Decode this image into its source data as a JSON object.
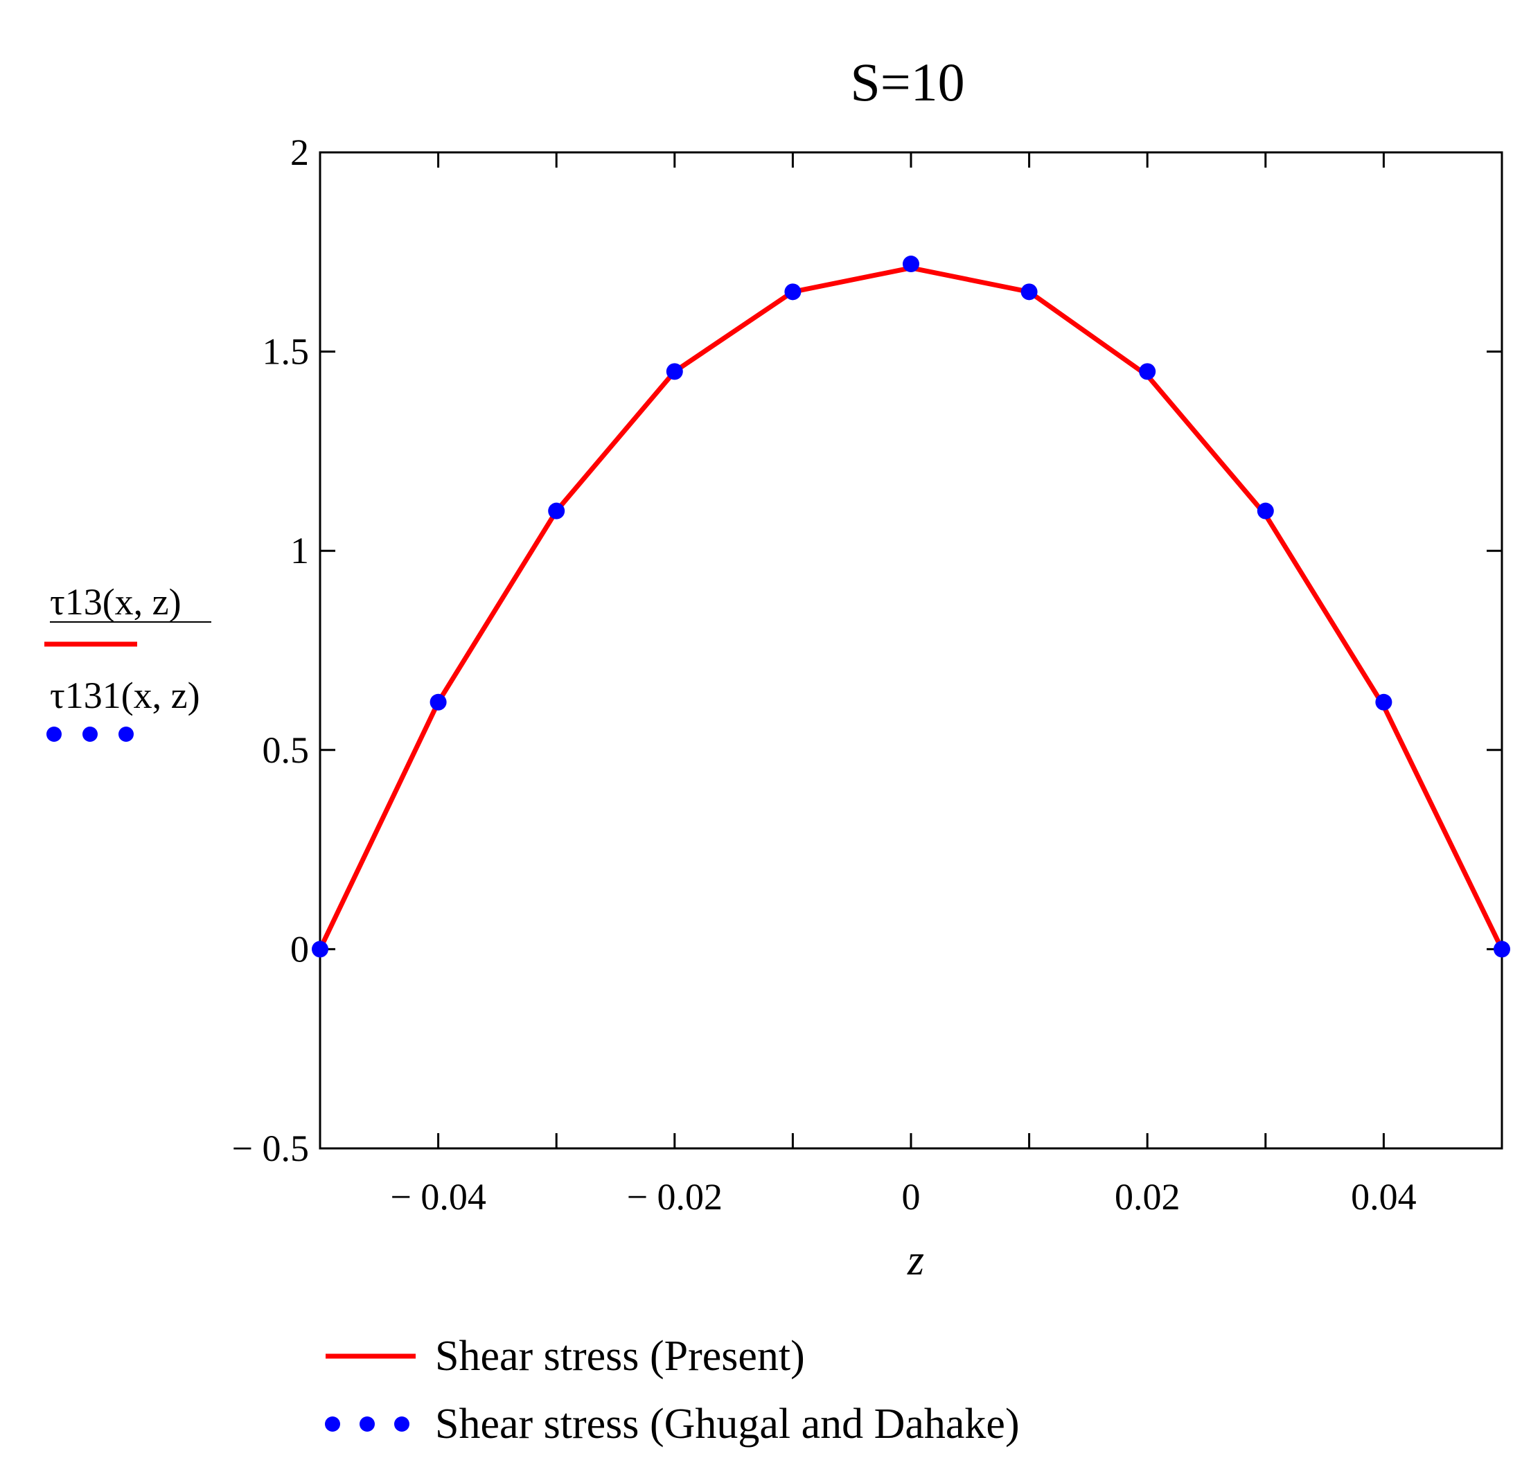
{
  "chart_data": {
    "type": "line",
    "title": "S=10",
    "xlabel": "z",
    "ylabel_series_labels": [
      "τ13(x, z)",
      "τ131(x, z)"
    ],
    "xlim": [
      -0.05,
      0.05
    ],
    "ylim": [
      -0.5,
      2
    ],
    "x_ticks": [
      -0.05,
      -0.04,
      -0.03,
      -0.02,
      -0.01,
      0,
      0.01,
      0.02,
      0.03,
      0.04,
      0.05
    ],
    "x_tick_labels": [
      {
        "value": -0.04,
        "label": "− 0.04"
      },
      {
        "value": -0.02,
        "label": "− 0.02"
      },
      {
        "value": 0,
        "label": "0"
      },
      {
        "value": 0.02,
        "label": "0.02"
      },
      {
        "value": 0.04,
        "label": "0.04"
      }
    ],
    "y_ticks": [
      {
        "value": -0.5,
        "label": "− 0.5"
      },
      {
        "value": 0,
        "label": "0"
      },
      {
        "value": 0.5,
        "label": "0.5"
      },
      {
        "value": 1,
        "label": "1"
      },
      {
        "value": 1.5,
        "label": "1.5"
      },
      {
        "value": 2,
        "label": "2"
      }
    ],
    "grid": false,
    "legend_placement": "bottom",
    "series": [
      {
        "name": "Shear stress (Present)",
        "style": "line",
        "color": "#ff0000",
        "x": [
          -0.05,
          -0.04,
          -0.03,
          -0.02,
          -0.01,
          0,
          0.01,
          0.02,
          0.03,
          0.04,
          0.05
        ],
        "y": [
          0,
          0.62,
          1.1,
          1.45,
          1.65,
          1.71,
          1.65,
          1.44,
          1.09,
          0.61,
          0
        ]
      },
      {
        "name": "Shear stress (Ghugal and Dahake)",
        "style": "dots",
        "color": "#0000ff",
        "x": [
          -0.05,
          -0.04,
          -0.03,
          -0.02,
          -0.01,
          0,
          0.01,
          0.02,
          0.03,
          0.04,
          0.05
        ],
        "y": [
          0,
          0.62,
          1.1,
          1.45,
          1.65,
          1.72,
          1.65,
          1.45,
          1.1,
          0.62,
          0
        ]
      }
    ]
  }
}
